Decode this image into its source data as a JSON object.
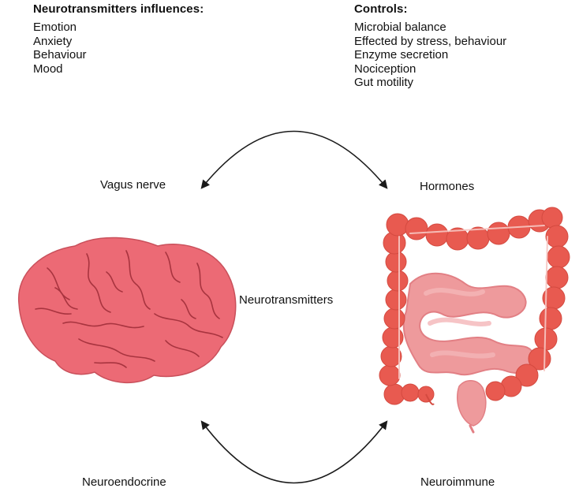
{
  "left_block": {
    "title": "Neurotransmitters influences:",
    "items": [
      "Emotion",
      "Anxiety",
      "Behaviour",
      "Mood"
    ]
  },
  "right_block": {
    "title": "Controls:",
    "items": [
      "Microbial balance",
      "Effected by stress, behaviour",
      "Enzyme secretion",
      "Nociception",
      "Gut motility"
    ]
  },
  "labels": {
    "vagus": "Vagus nerve",
    "hormones": "Hormones",
    "center": "Neurotransmitters",
    "neuroendocrine": "Neuroendocrine",
    "neuroimmune": "Neuroimmune"
  },
  "colors": {
    "brain_fill": "#ec6a75",
    "brain_stroke": "#a8343f",
    "colon": "#e85a50",
    "small_intestine": "#ee9a9c",
    "arrow": "#1a1a1a"
  },
  "icons": [
    "brain-icon",
    "intestine-icon"
  ]
}
